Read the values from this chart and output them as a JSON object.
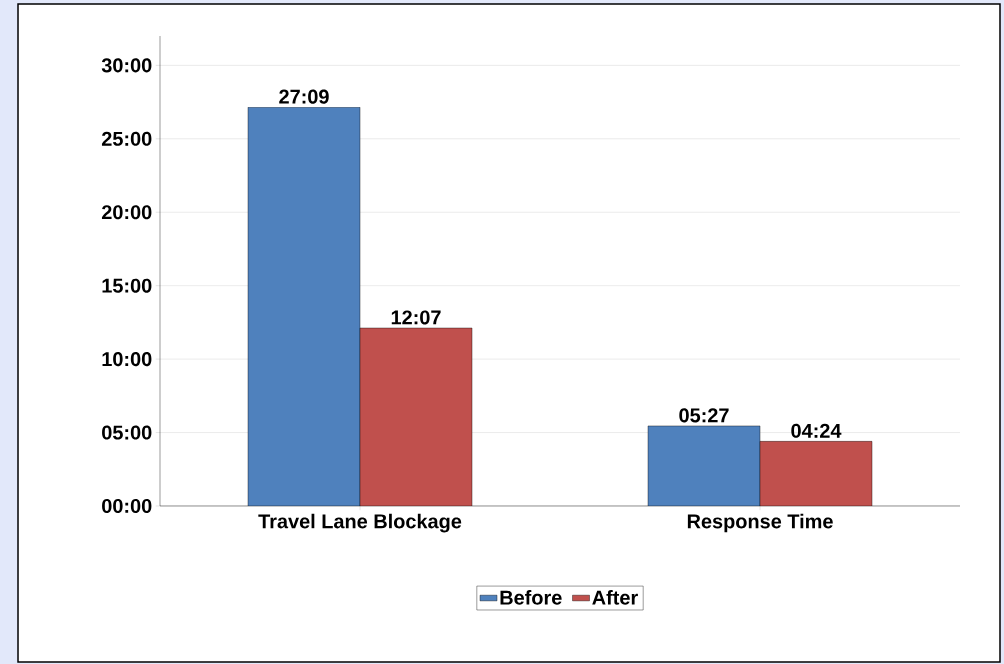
{
  "chart_data": {
    "type": "bar",
    "categories": [
      "Travel Lane Blockage",
      "Response Time"
    ],
    "series": [
      {
        "name": "Before",
        "color": "#4f81bd",
        "values": [
          27.15,
          5.45
        ],
        "value_labels": [
          "27:09",
          "05:27"
        ]
      },
      {
        "name": "After",
        "color": "#c0504d",
        "values": [
          12.1167,
          4.4
        ],
        "value_labels": [
          "12:07",
          "04:24"
        ]
      }
    ],
    "ylim": [
      0,
      32
    ],
    "yticks": [
      {
        "value": 0,
        "label": "00:00"
      },
      {
        "value": 5,
        "label": "05:00"
      },
      {
        "value": 10,
        "label": "10:00"
      },
      {
        "value": 15,
        "label": "15:00"
      },
      {
        "value": 20,
        "label": "20:00"
      },
      {
        "value": 25,
        "label": "25:00"
      },
      {
        "value": 30,
        "label": "30:00"
      }
    ],
    "grid": "y",
    "legend": "bottom"
  }
}
